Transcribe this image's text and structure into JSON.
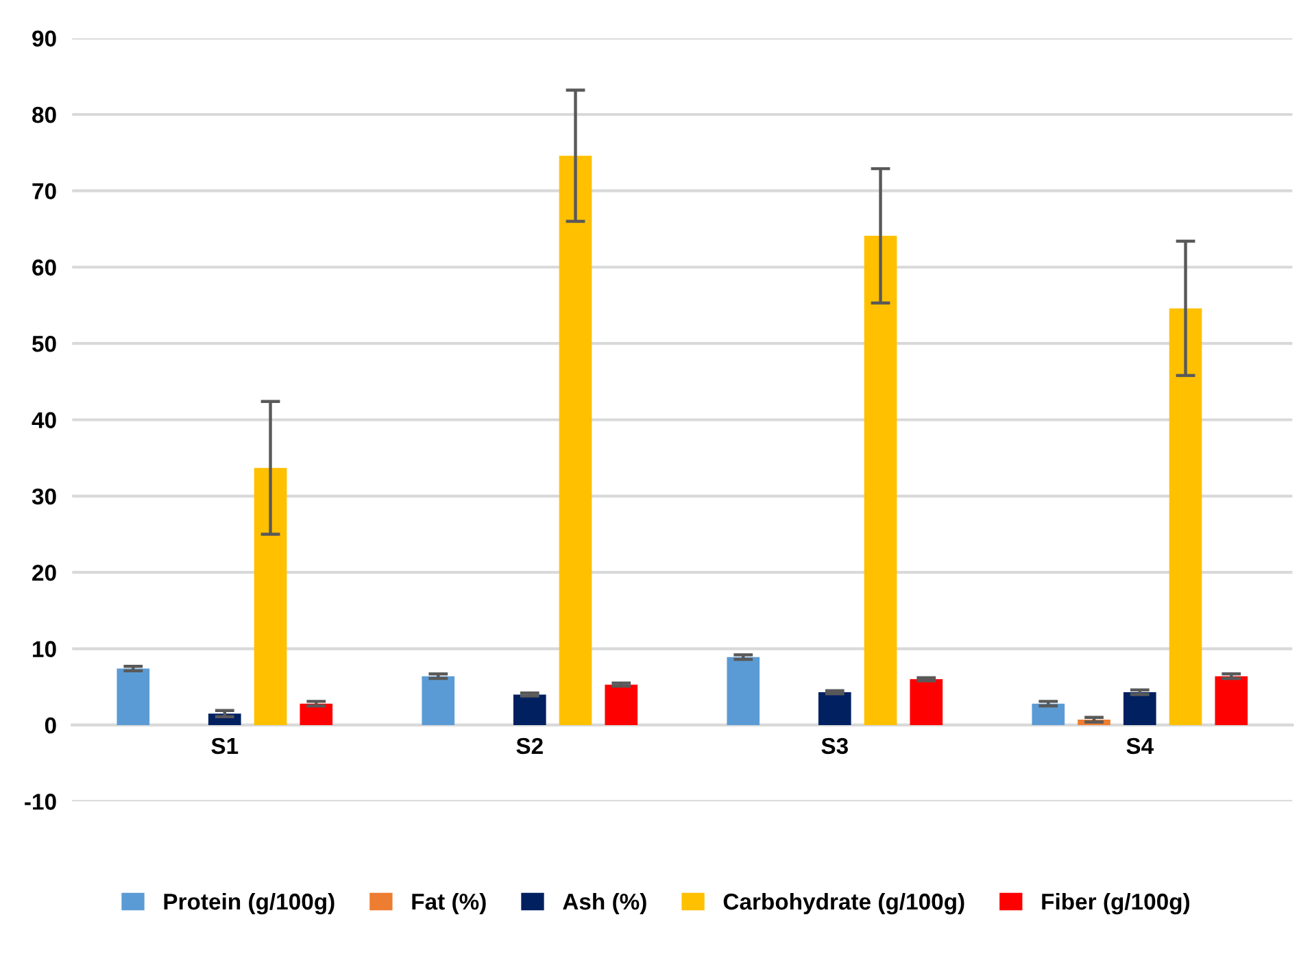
{
  "chart_data": {
    "type": "bar",
    "categories": [
      "S1",
      "S2",
      "S3",
      "S4"
    ],
    "series": [
      {
        "name": "Protein (g/100g)",
        "color": "#5b9bd5",
        "values": [
          7.4,
          6.4,
          8.9,
          2.8
        ],
        "errors": [
          0.3,
          0.3,
          0.3,
          0.3
        ]
      },
      {
        "name": "Fat (%)",
        "color": "#ed7d31",
        "values": [
          null,
          null,
          null,
          0.7
        ],
        "errors": [
          null,
          null,
          null,
          0.3
        ]
      },
      {
        "name": "Ash (%)",
        "color": "#002060",
        "values": [
          1.5,
          4.0,
          4.3,
          4.3
        ],
        "errors": [
          0.4,
          0.2,
          0.2,
          0.3
        ]
      },
      {
        "name": "Carbohydrate (g/100g)",
        "color": "#ffc000",
        "values": [
          33.7,
          74.6,
          64.1,
          54.6
        ],
        "errors": [
          8.7,
          8.6,
          8.8,
          8.8
        ]
      },
      {
        "name": "Fiber (g/100g)",
        "color": "#ff0000",
        "values": [
          2.8,
          5.3,
          6.0,
          6.4
        ],
        "errors": [
          0.3,
          0.2,
          0.2,
          0.3
        ]
      }
    ],
    "ylim": [
      -10,
      90
    ],
    "yticks": [
      -10,
      0,
      10,
      20,
      30,
      40,
      50,
      60,
      70,
      80,
      90
    ],
    "grid": "y",
    "legend": "bottom"
  }
}
